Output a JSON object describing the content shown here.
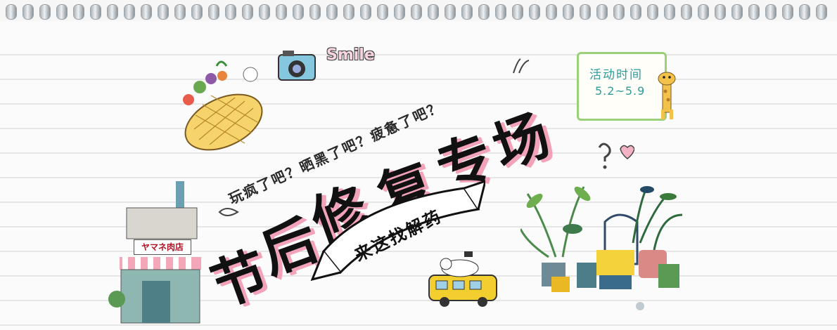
{
  "banner": {
    "title_chars": [
      "节",
      "后",
      "修",
      "复",
      "专",
      "场"
    ],
    "subtitle": "来这找解药",
    "questions_line1": "玩疯了吧？晒黑了吧？疲惫了吧？",
    "event": {
      "label": "活动时间",
      "dates": "5.2~5.9"
    },
    "smile_text": "Smile",
    "shop_sign": "ヤマネ肉店",
    "colors": {
      "title_shadow": "#f2a3b9",
      "event_border": "#9bd07a",
      "event_text": "#2f9a9a"
    }
  }
}
